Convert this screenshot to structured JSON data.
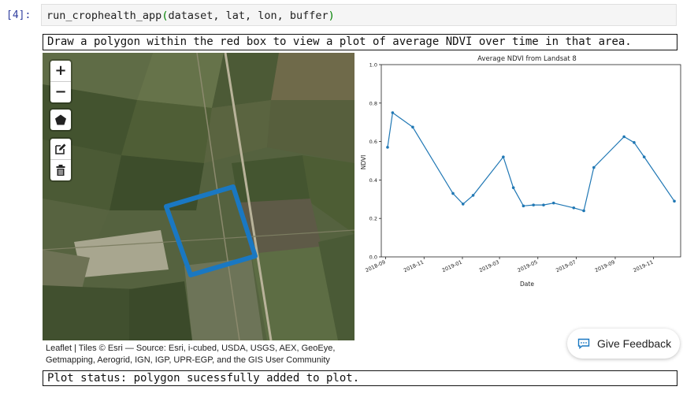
{
  "cell": {
    "prompt": "[4]:",
    "code_fn": "run_crophealth_app",
    "code_args": "dataset, lat, lon, buffer",
    "open_paren": "(",
    "close_paren": ")"
  },
  "instruction": "Draw a polygon within the red box to view a plot of average NDVI over time in that area.",
  "map": {
    "zoom_in": "+",
    "zoom_out": "−",
    "tools": [
      "polygon-icon",
      "edit-icon",
      "trash-icon"
    ],
    "polygon_color": "#1a78c2",
    "attribution_line1": "Leaflet | Tiles © Esri — Source: Esri, i-cubed, USDA, USGS, AEX, GeoEye,",
    "attribution_line2": "Getmapping, Aerogrid, IGN, IGP, UPR-EGP, and the GIS User Community"
  },
  "chart_data": {
    "type": "line",
    "title": "Average NDVI from Landsat 8",
    "xlabel": "Date",
    "ylabel": "NDVI",
    "ylim": [
      0.0,
      1.0
    ],
    "yticks": [
      "0.0",
      "0.2",
      "0.4",
      "0.6",
      "0.8",
      "1.0"
    ],
    "xticks": [
      "2018-09",
      "2018-11",
      "2019-01",
      "2019-03",
      "2019-05",
      "2019-07",
      "2019-09",
      "2019-11"
    ],
    "series": [
      {
        "color": "#1f77b4",
        "x": [
          "2018-09-04",
          "2018-09-12",
          "2018-10-14",
          "2018-12-17",
          "2019-01-02",
          "2019-01-18",
          "2019-03-07",
          "2019-03-23",
          "2019-04-08",
          "2019-04-24",
          "2019-05-10",
          "2019-05-26",
          "2019-06-27",
          "2019-07-13",
          "2019-07-29",
          "2019-09-15",
          "2019-10-01",
          "2019-10-17",
          "2019-12-04"
        ],
        "y": [
          0.57,
          0.75,
          0.675,
          0.33,
          0.275,
          0.32,
          0.52,
          0.36,
          0.265,
          0.27,
          0.27,
          0.28,
          0.255,
          0.24,
          0.465,
          0.625,
          0.595,
          0.52,
          0.29
        ]
      }
    ]
  },
  "status": "Plot status: polygon sucessfully added to plot.",
  "feedback": {
    "label": "Give Feedback",
    "icon": "feedback-icon"
  }
}
